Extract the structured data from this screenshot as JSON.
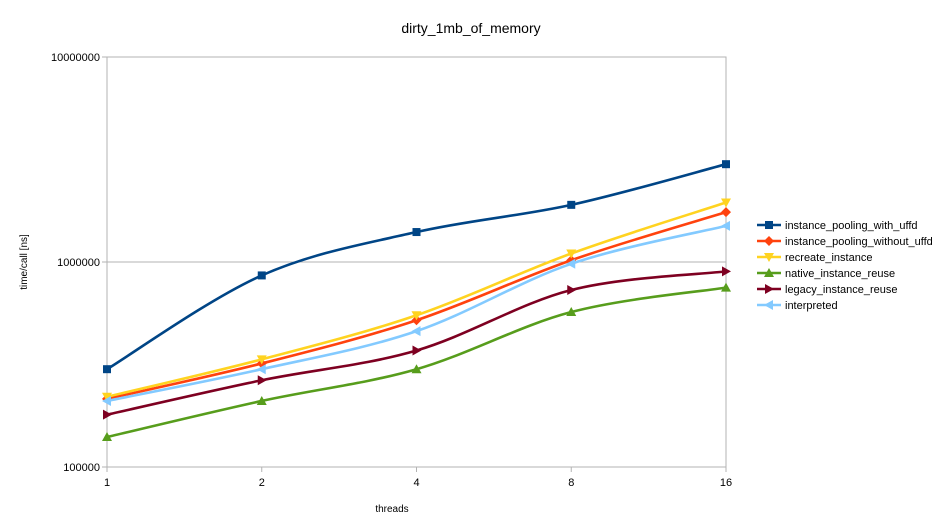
{
  "chart_data": {
    "type": "line",
    "title": "dirty_1mb_of_memory",
    "xlabel": "threads",
    "ylabel": "time/call [ns]",
    "x": [
      1,
      2,
      4,
      8,
      16
    ],
    "x_tick_labels": [
      "1",
      "2",
      "4",
      "8",
      "16"
    ],
    "x_scale": "log2",
    "y_scale": "log10",
    "ylim": [
      100000,
      10000000
    ],
    "y_tick_labels": [
      "10000000",
      "1000000",
      "100000"
    ],
    "y_ticks": [
      10000000,
      1000000,
      100000
    ],
    "grid": "horizontal major",
    "legend_position": "right",
    "series": [
      {
        "name": "instance_pooling_with_uffd",
        "color": "#004586",
        "marker": "square",
        "values": [
          300000,
          860000,
          1400000,
          1900000,
          3000000
        ]
      },
      {
        "name": "instance_pooling_without_uffd",
        "color": "#ff420e",
        "marker": "diamond",
        "values": [
          215000,
          320000,
          520000,
          1020000,
          1750000
        ]
      },
      {
        "name": "recreate_instance",
        "color": "#ffd320",
        "marker": "triangle-down",
        "values": [
          220000,
          335000,
          550000,
          1100000,
          1950000
        ]
      },
      {
        "name": "native_instance_reuse",
        "color": "#579d1c",
        "marker": "triangle-up",
        "values": [
          140000,
          210000,
          300000,
          570000,
          750000
        ]
      },
      {
        "name": "legacy_instance_reuse",
        "color": "#7e0021",
        "marker": "triangle-right",
        "values": [
          180000,
          265000,
          370000,
          730000,
          900000
        ]
      },
      {
        "name": "interpreted",
        "color": "#83caff",
        "marker": "triangle-left",
        "values": [
          210000,
          300000,
          460000,
          980000,
          1500000
        ]
      }
    ]
  }
}
